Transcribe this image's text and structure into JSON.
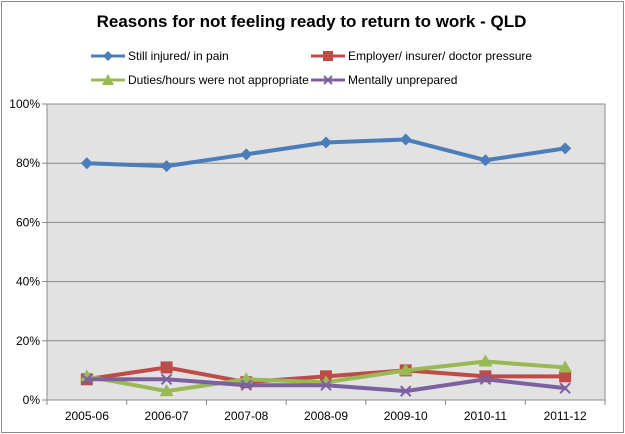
{
  "chart_data": {
    "type": "line",
    "title": "Reasons for not feeling ready to return to work - QLD",
    "categories": [
      "2005-06",
      "2006-07",
      "2007-08",
      "2008-09",
      "2009-10",
      "2010-11",
      "2011-12"
    ],
    "yticks": [
      "0%",
      "20%",
      "40%",
      "60%",
      "80%",
      "100%"
    ],
    "ylim": [
      0,
      100
    ],
    "grid": true,
    "legend_position": "top",
    "series": [
      {
        "name": "Still injured/ in pain",
        "color": "#4a7ebb",
        "marker": "diamond",
        "values": [
          80,
          79,
          83,
          87,
          88,
          81,
          85
        ]
      },
      {
        "name": "Employer/ insurer/ doctor pressure",
        "color": "#be4b48",
        "marker": "square",
        "values": [
          7,
          11,
          6,
          8,
          10,
          8,
          8
        ]
      },
      {
        "name": "Duties/hours were not appropriate",
        "color": "#98b954",
        "marker": "triangle",
        "values": [
          8,
          3,
          7,
          6,
          10,
          13,
          11
        ]
      },
      {
        "name": "Mentally unprepared",
        "color": "#7d60a0",
        "marker": "x",
        "values": [
          7,
          7,
          5,
          5,
          3,
          7,
          4
        ]
      }
    ]
  }
}
